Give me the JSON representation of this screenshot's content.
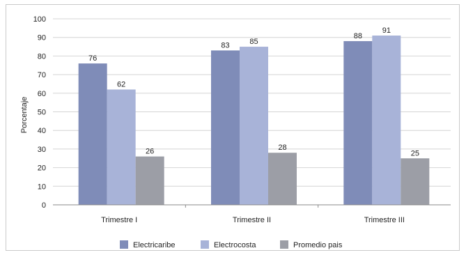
{
  "chart_data": {
    "type": "bar",
    "title": "",
    "xlabel": "",
    "ylabel": "Porcentaje",
    "ylim": [
      0,
      100
    ],
    "yticks": [
      0,
      10,
      20,
      30,
      40,
      50,
      60,
      70,
      80,
      90,
      100
    ],
    "grid": true,
    "legend_position": "bottom",
    "categories": [
      "Trimestre I",
      "Trimestre II",
      "Trimestre III"
    ],
    "series": [
      {
        "name": "Electricaribe",
        "values": [
          76,
          83,
          88
        ],
        "color": "#7f8cb8"
      },
      {
        "name": "Electrocosta",
        "values": [
          62,
          85,
          91
        ],
        "color": "#a8b3d8"
      },
      {
        "name": "Promedio pais",
        "values": [
          26,
          28,
          25
        ],
        "color": "#9c9ea6"
      }
    ],
    "data_labels": [
      [
        "76",
        "83",
        "88"
      ],
      [
        "62",
        "85",
        "91"
      ],
      [
        "26",
        "28",
        "25"
      ]
    ],
    "gridline_color": "#d4d4d4",
    "axis_color": "#8a8a8a"
  }
}
